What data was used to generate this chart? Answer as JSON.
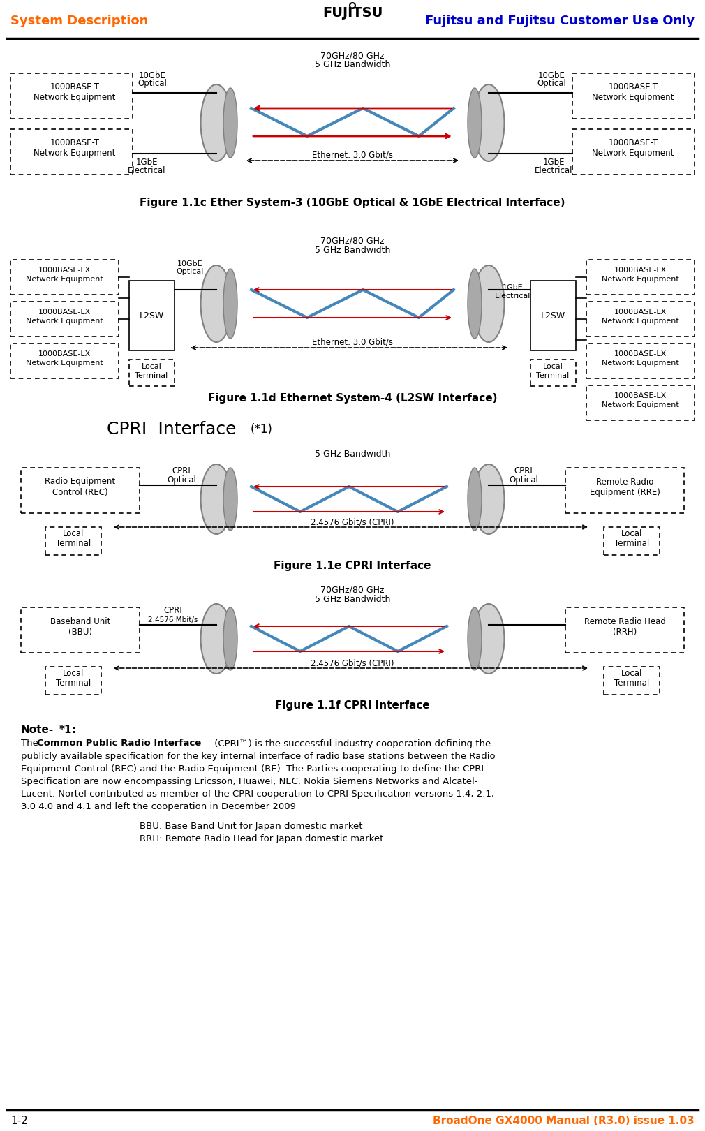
{
  "header_left": "System Description",
  "header_right": "Fujitsu and Fujitsu Customer Use Only",
  "footer_left": "1-2",
  "footer_right": "BroadOne GX4000 Manual (R3.0) issue 1.03",
  "header_color": "#FF6600",
  "right_color": "#0000CC",
  "fig1c_title": "Figure 1.1c Ether System-3 (10GbE Optical & 1GbE Electrical Interface)",
  "fig1d_title": "Figure 1.1d Ethernet System-4 (L2SW Interface)",
  "cpri_title": "CPRI  Interface (*1)",
  "fig1e_title": "Figure 1.1e CPRI Interface",
  "fig1f_title": "Figure 1.1f CPRI Interface",
  "note_title": "Note-*1:",
  "note_body": "The Common Public Radio Interface (CPRI™) is the successful industry cooperation defining the\npublicly available specification for the key internal interface of radio base stations between the Radio\nEquipment Control (REC) and the Radio Equipment (RE). The Parties cooperating to define the CPRI\nSpecification are now encompassing Ericsson, Huawei, NEC, Nokia Siemens Networks and Alcatel-\nLucent. Nortel contributed as member of the CPRI cooperation to CPRI Specification versions 1.4, 2.1,\n3.0 4.0 and 4.1 and left the cooperation in December 2009",
  "bbu_note": "BBU: Base Band Unit for Japan domestic market",
  "rrh_note": "RRH: Remote Radio Head for Japan domestic market",
  "bg_color": "#FFFFFF",
  "box_color": "#000000",
  "dash_pattern": [
    4,
    3
  ]
}
